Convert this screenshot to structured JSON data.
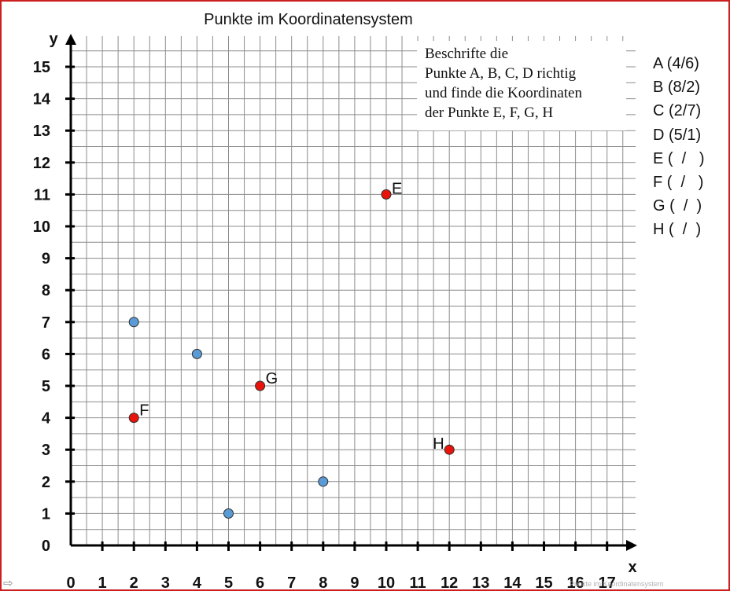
{
  "chart_data": {
    "type": "scatter",
    "title": "Punkte im Koordinatensystem",
    "xlabel": "x",
    "ylabel": "y",
    "xlim": [
      0,
      17
    ],
    "ylim": [
      0,
      15
    ],
    "grid": true,
    "x_ticks": [
      "0",
      "1",
      "2",
      "3",
      "4",
      "5",
      "6",
      "7",
      "8",
      "9",
      "10",
      "11",
      "12",
      "13",
      "14",
      "15",
      "16",
      "17"
    ],
    "y_ticks": [
      "0",
      "1",
      "2",
      "3",
      "4",
      "5",
      "6",
      "7",
      "8",
      "9",
      "10",
      "11",
      "12",
      "13",
      "14",
      "15"
    ],
    "series": [
      {
        "color": "#5b9bd5",
        "points": [
          {
            "x": 2,
            "y": 7,
            "label": ""
          },
          {
            "x": 4,
            "y": 6,
            "label": ""
          },
          {
            "x": 5,
            "y": 1,
            "label": ""
          },
          {
            "x": 8,
            "y": 2,
            "label": ""
          }
        ]
      },
      {
        "color": "#e8140c",
        "points": [
          {
            "x": 10,
            "y": 11,
            "label": "E"
          },
          {
            "x": 2,
            "y": 4,
            "label": "F"
          },
          {
            "x": 6,
            "y": 5,
            "label": "G"
          },
          {
            "x": 12,
            "y": 3,
            "label": "H"
          }
        ]
      }
    ]
  },
  "task_lines": [
    "Beschrifte die",
    "Punkte A, B, C, D richtig",
    "und finde die Koordinaten",
    "der Punkte E, F, G, H"
  ],
  "answer_list": [
    "A (4/6)",
    "B (8/2)",
    "C (2/7)",
    "D (5/1)",
    "E (  /   )",
    "F (  /   )",
    "G (  /  )",
    "H (  /  )"
  ],
  "footer_arrow": "⇨",
  "footer_text": "Punkte im Koordinatensystem",
  "colors": {
    "frame": "#cc1f1f",
    "grid": "#8c8c8c",
    "axis": "#000000"
  }
}
